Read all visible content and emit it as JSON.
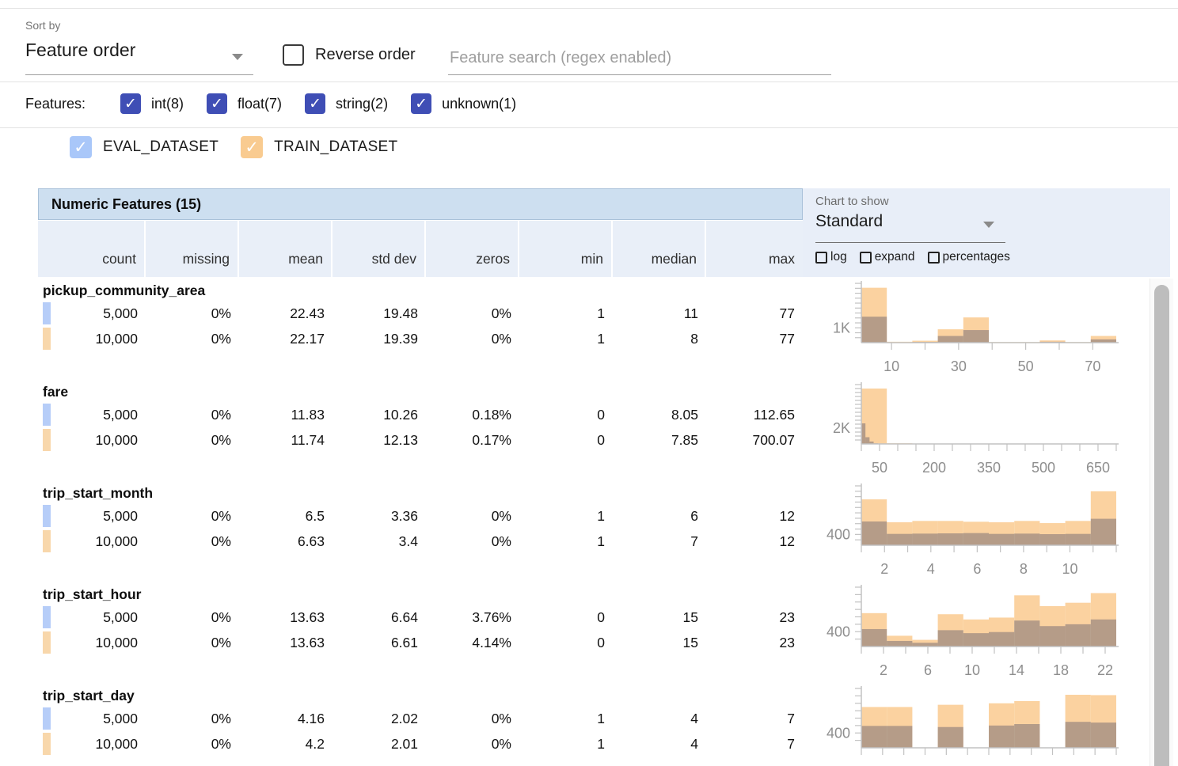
{
  "controls": {
    "sort_by_label": "Sort by",
    "sort_by_value": "Feature order",
    "reverse_order_label": "Reverse order",
    "search_placeholder": "Feature search (regex enabled)",
    "features_label": "Features:",
    "type_filters": [
      {
        "label": "int(8)",
        "checked": true
      },
      {
        "label": "float(7)",
        "checked": true
      },
      {
        "label": "string(2)",
        "checked": true
      },
      {
        "label": "unknown(1)",
        "checked": true
      }
    ],
    "datasets": [
      {
        "name": "EVAL_DATASET",
        "color": "#a9c7f9",
        "checked": true
      },
      {
        "name": "TRAIN_DATASET",
        "color": "#f9cb90",
        "checked": true
      }
    ]
  },
  "chart_controls": {
    "label": "Chart to show",
    "value": "Standard",
    "options": [
      "log",
      "expand",
      "percentages"
    ]
  },
  "table": {
    "title": "Numeric Features (15)",
    "columns": [
      "count",
      "missing",
      "mean",
      "std dev",
      "zeros",
      "min",
      "median",
      "max"
    ],
    "features": [
      {
        "name": "pickup_community_area",
        "rows": [
          {
            "dataset": "EVAL_DATASET",
            "values": [
              "5,000",
              "0%",
              "22.43",
              "19.48",
              "0%",
              "1",
              "11",
              "77"
            ]
          },
          {
            "dataset": "TRAIN_DATASET",
            "values": [
              "10,000",
              "0%",
              "22.17",
              "19.39",
              "0%",
              "1",
              "8",
              "77"
            ]
          }
        ]
      },
      {
        "name": "fare",
        "rows": [
          {
            "dataset": "EVAL_DATASET",
            "values": [
              "5,000",
              "0%",
              "11.83",
              "10.26",
              "0.18%",
              "0",
              "8.05",
              "112.65"
            ]
          },
          {
            "dataset": "TRAIN_DATASET",
            "values": [
              "10,000",
              "0%",
              "11.74",
              "12.13",
              "0.17%",
              "0",
              "7.85",
              "700.07"
            ]
          }
        ]
      },
      {
        "name": "trip_start_month",
        "rows": [
          {
            "dataset": "EVAL_DATASET",
            "values": [
              "5,000",
              "0%",
              "6.5",
              "3.36",
              "0%",
              "1",
              "6",
              "12"
            ]
          },
          {
            "dataset": "TRAIN_DATASET",
            "values": [
              "10,000",
              "0%",
              "6.63",
              "3.4",
              "0%",
              "1",
              "7",
              "12"
            ]
          }
        ]
      },
      {
        "name": "trip_start_hour",
        "rows": [
          {
            "dataset": "EVAL_DATASET",
            "values": [
              "5,000",
              "0%",
              "13.63",
              "6.64",
              "3.76%",
              "0",
              "15",
              "23"
            ]
          },
          {
            "dataset": "TRAIN_DATASET",
            "values": [
              "10,000",
              "0%",
              "13.63",
              "6.61",
              "4.14%",
              "0",
              "15",
              "23"
            ]
          }
        ]
      },
      {
        "name": "trip_start_day",
        "rows": [
          {
            "dataset": "EVAL_DATASET",
            "values": [
              "5,000",
              "0%",
              "4.16",
              "2.02",
              "0%",
              "1",
              "4",
              "7"
            ]
          },
          {
            "dataset": "TRAIN_DATASET",
            "values": [
              "10,000",
              "0%",
              "4.2",
              "2.01",
              "0%",
              "1",
              "4",
              "7"
            ]
          }
        ]
      }
    ]
  },
  "chart_data": [
    {
      "type": "bar",
      "feature": "pickup_community_area",
      "y_axis_label": "1K",
      "y_label_value": 1000,
      "y_max": 4000,
      "y_tick_step": 333,
      "x_min": 1,
      "x_max": 77,
      "x_tick_step": 10,
      "x_labels": [
        10,
        30,
        50,
        70
      ],
      "series": [
        {
          "name": "TRAIN_DATASET",
          "x_min": 1,
          "x_max": 77,
          "counts": [
            3700,
            60,
            130,
            900,
            1700,
            40,
            40,
            150,
            40,
            450
          ]
        },
        {
          "name": "EVAL_DATASET",
          "x_min": 1,
          "x_max": 77,
          "counts": [
            1750,
            25,
            50,
            450,
            850,
            15,
            15,
            60,
            15,
            220
          ]
        }
      ]
    },
    {
      "type": "bar",
      "feature": "fare",
      "y_axis_label": "2K",
      "y_label_value": 2000,
      "y_max": 7500,
      "y_tick_step": 500,
      "x_min": 0,
      "x_max": 700.07,
      "x_tick_step": 50,
      "x_labels": [
        50,
        200,
        350,
        500,
        650
      ],
      "series": [
        {
          "name": "TRAIN_DATASET",
          "x_min": 0,
          "x_max": 700.07,
          "counts": [
            7000,
            80,
            25,
            10,
            5,
            3,
            2,
            1,
            1,
            2
          ]
        },
        {
          "name": "EVAL_DATASET",
          "x_min": 0,
          "x_max": 112.65,
          "counts": [
            2600,
            850,
            300,
            80,
            30,
            15,
            8,
            5,
            3,
            2
          ]
        }
      ]
    },
    {
      "type": "bar",
      "feature": "trip_start_month",
      "y_axis_label": "400",
      "y_label_value": 400,
      "y_max": 2200,
      "y_tick_step": 200,
      "x_min": 1,
      "x_max": 12,
      "x_tick_step": 1,
      "x_labels": [
        2,
        4,
        6,
        8,
        10
      ],
      "series": [
        {
          "name": "TRAIN_DATASET",
          "x_min": 1,
          "x_max": 12,
          "counts": [
            1700,
            850,
            900,
            900,
            870,
            850,
            900,
            820,
            900,
            2000
          ]
        },
        {
          "name": "EVAL_DATASET",
          "x_min": 1,
          "x_max": 12,
          "counts": [
            880,
            420,
            430,
            440,
            450,
            420,
            430,
            410,
            420,
            980
          ]
        }
      ]
    },
    {
      "type": "bar",
      "feature": "trip_start_hour",
      "y_axis_label": "400",
      "y_label_value": 400,
      "y_max": 1600,
      "y_tick_step": 200,
      "x_min": 0,
      "x_max": 23,
      "x_tick_step": 2,
      "x_labels": [
        2,
        6,
        10,
        14,
        18,
        22
      ],
      "series": [
        {
          "name": "TRAIN_DATASET",
          "x_min": 0,
          "x_max": 23,
          "counts": [
            900,
            290,
            180,
            870,
            730,
            780,
            1380,
            1090,
            1180,
            1440
          ]
        },
        {
          "name": "EVAL_DATASET",
          "x_min": 0,
          "x_max": 23,
          "counts": [
            470,
            150,
            100,
            440,
            360,
            390,
            700,
            550,
            600,
            730
          ]
        }
      ]
    },
    {
      "type": "bar",
      "feature": "trip_start_day",
      "y_axis_label": "400",
      "y_label_value": 400,
      "y_max": 1600,
      "y_tick_step": 200,
      "x_min": 1,
      "x_max": 7,
      "x_tick_step": 0.5,
      "x_labels": [],
      "series": [
        {
          "name": "TRAIN_DATASET",
          "x_min": 1,
          "x_max": 7,
          "counts": [
            1100,
            1100,
            0,
            1160,
            0,
            1200,
            1260,
            0,
            1430,
            1420
          ]
        },
        {
          "name": "EVAL_DATASET",
          "x_min": 1,
          "x_max": 7,
          "counts": [
            590,
            590,
            0,
            560,
            0,
            600,
            640,
            0,
            700,
            680
          ]
        }
      ]
    }
  ],
  "colors": {
    "filter_checkbox": "#3f4eb5",
    "eval_swatch": "#b6cdf8",
    "train_swatch": "#f8d7ab",
    "header_band": "#cddff0",
    "header_row": "#e9eff8",
    "chart_panel": "#e8eef8",
    "chart_train_fill": "#fbd2a0",
    "chart_eval_fill": "rgba(111,101,112,0.5)",
    "axis_line": "#c2c2c2",
    "axis_text": "#8e8e8e"
  }
}
